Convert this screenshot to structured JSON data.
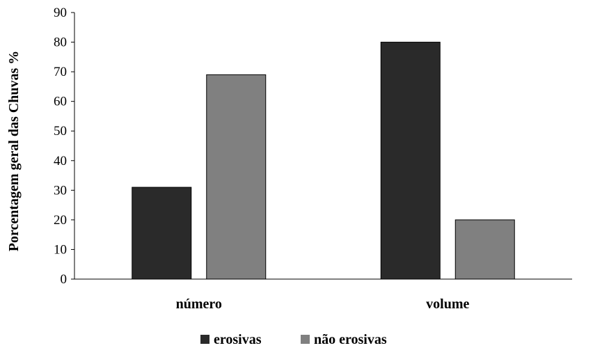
{
  "chart_data": {
    "type": "bar",
    "title": "",
    "xlabel": "",
    "ylabel": "Porcentagem geral das Chuvas %",
    "categories": [
      "número",
      "volume"
    ],
    "series": [
      {
        "name": "erosivas",
        "values": [
          31,
          80
        ],
        "color": "#2a2a2a"
      },
      {
        "name": "não erosivas",
        "values": [
          69,
          20
        ],
        "color": "#808080"
      }
    ],
    "ylim": [
      0,
      90
    ],
    "yticks": [
      0,
      10,
      20,
      30,
      40,
      50,
      60,
      70,
      80,
      90
    ],
    "grid": false,
    "legend": "bottom"
  }
}
